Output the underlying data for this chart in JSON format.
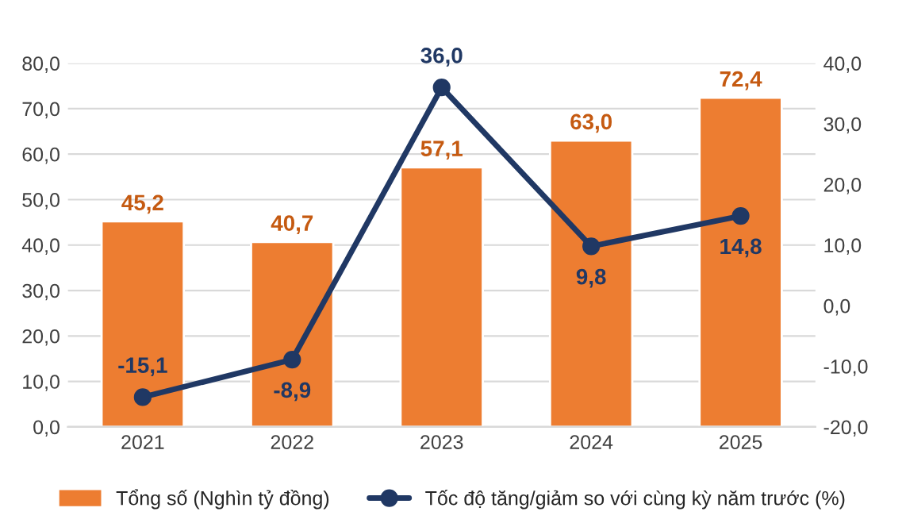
{
  "chart_data": {
    "type": "bar",
    "categories": [
      "2021",
      "2022",
      "2023",
      "2024",
      "2025"
    ],
    "series": [
      {
        "name": "Tổng số (Nghìn tỷ đồng)",
        "color": "#ed7d31",
        "values": [
          45.2,
          40.7,
          57.1,
          63.0,
          72.4
        ],
        "value_labels": [
          "45,2",
          "40,7",
          "57,1",
          "63,0",
          "72,4"
        ]
      },
      {
        "name": "Tốc độ tăng/giảm so với cùng kỳ năm trước (%)",
        "type": "line",
        "axis": "y2",
        "color": "#203864",
        "marker": "circle",
        "values": [
          -15.1,
          -8.9,
          36.0,
          9.8,
          14.8
        ],
        "value_labels": [
          "-15,1",
          "-8,9",
          "36,0",
          "9,8",
          "14,8"
        ]
      }
    ],
    "ylim": [
      0,
      80
    ],
    "yticks": [
      {
        "value": 0,
        "label": "0,0"
      },
      {
        "value": 10,
        "label": "10,0"
      },
      {
        "value": 20,
        "label": "20,0"
      },
      {
        "value": 30,
        "label": "30,0"
      },
      {
        "value": 40,
        "label": "40,0"
      },
      {
        "value": 50,
        "label": "50,0"
      },
      {
        "value": 60,
        "label": "60,0"
      },
      {
        "value": 70,
        "label": "70,0"
      },
      {
        "value": 80,
        "label": "80,0"
      }
    ],
    "y2lim": [
      -20,
      40
    ],
    "y2ticks": [
      {
        "value": -20,
        "label": "-20,0"
      },
      {
        "value": -10,
        "label": "-10,0"
      },
      {
        "value": 0,
        "label": "0,0"
      },
      {
        "value": 10,
        "label": "10,0"
      },
      {
        "value": 20,
        "label": "20,0"
      },
      {
        "value": 30,
        "label": "30,0"
      },
      {
        "value": 40,
        "label": "40,0"
      }
    ],
    "grid": "y",
    "legend": "bottom"
  }
}
